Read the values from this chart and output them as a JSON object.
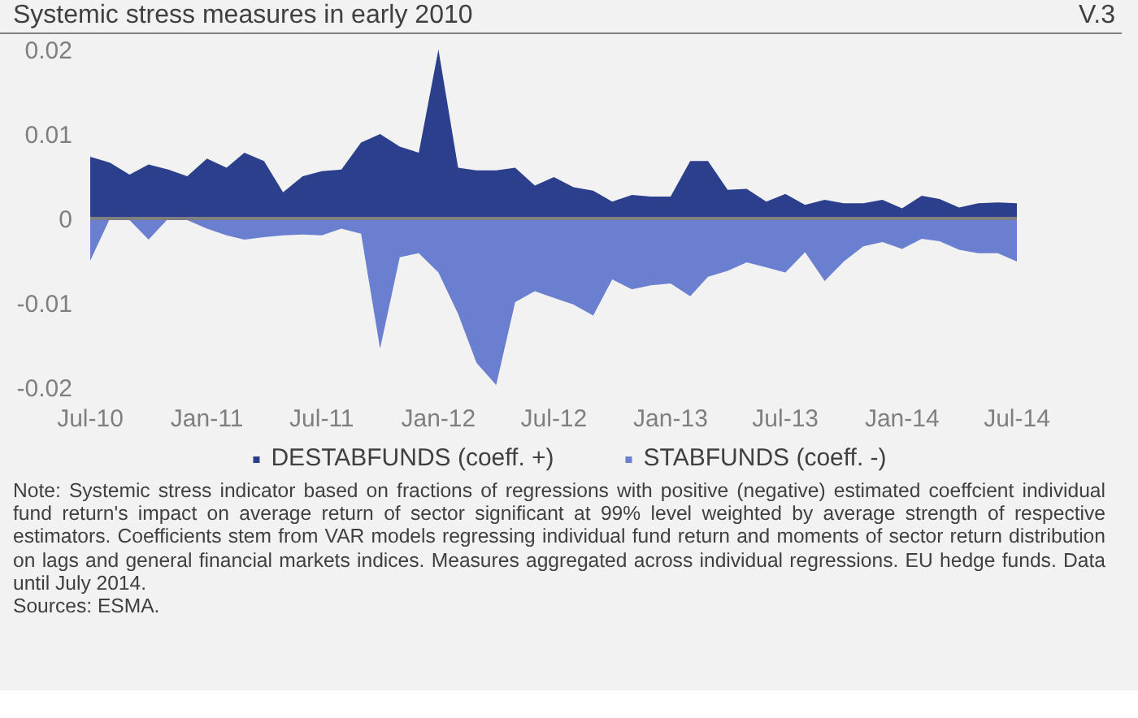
{
  "chart_data": {
    "type": "area",
    "title": "Systemic stress measures in early 2010",
    "subtitle": "V.3",
    "x": [
      "2010-07",
      "2010-08",
      "2010-09",
      "2010-10",
      "2010-11",
      "2010-12",
      "2011-01",
      "2011-02",
      "2011-03",
      "2011-04",
      "2011-05",
      "2011-06",
      "2011-07",
      "2011-08",
      "2011-09",
      "2011-10",
      "2011-11",
      "2011-12",
      "2012-01",
      "2012-02",
      "2012-03",
      "2012-04",
      "2012-05",
      "2012-06",
      "2012-07",
      "2012-08",
      "2012-09",
      "2012-10",
      "2012-11",
      "2012-12",
      "2013-01",
      "2013-02",
      "2013-03",
      "2013-04",
      "2013-05",
      "2013-06",
      "2013-07",
      "2013-08",
      "2013-09",
      "2013-10",
      "2013-11",
      "2013-12",
      "2014-01",
      "2014-02",
      "2014-03",
      "2014-04",
      "2014-05",
      "2014-06",
      "2014-07"
    ],
    "series": [
      {
        "name": "DESTABFUNDS (coeff. +)",
        "color": "#2b3f8c",
        "values": [
          0.0073,
          0.0066,
          0.0052,
          0.0064,
          0.0058,
          0.005,
          0.0071,
          0.006,
          0.0078,
          0.0068,
          0.0031,
          0.005,
          0.0056,
          0.0058,
          0.009,
          0.01,
          0.0085,
          0.0078,
          0.02,
          0.006,
          0.0057,
          0.0057,
          0.006,
          0.0039,
          0.0049,
          0.0037,
          0.0033,
          0.002,
          0.0028,
          0.0026,
          0.0026,
          0.0068,
          0.0068,
          0.0034,
          0.0035,
          0.002,
          0.0029,
          0.0016,
          0.0022,
          0.0018,
          0.0018,
          0.0022,
          0.0012,
          0.0027,
          0.0023,
          0.0013,
          0.0018,
          0.0019,
          0.0018
        ]
      },
      {
        "name": "STABFUNDS (coeff. -)",
        "color": "#6a7fd0",
        "values": [
          -0.005,
          0,
          -0.0002,
          -0.0025,
          0,
          -0.0002,
          -0.0012,
          -0.002,
          -0.0025,
          -0.0022,
          -0.002,
          -0.0019,
          -0.002,
          -0.0012,
          -0.0018,
          -0.0154,
          -0.0046,
          -0.0041,
          -0.0064,
          -0.0113,
          -0.0171,
          -0.0197,
          -0.0099,
          -0.0086,
          -0.0094,
          -0.0102,
          -0.0115,
          -0.0072,
          -0.0084,
          -0.0079,
          -0.0077,
          -0.0092,
          -0.0069,
          -0.0062,
          -0.0052,
          -0.0058,
          -0.0064,
          -0.004,
          -0.0074,
          -0.0051,
          -0.0033,
          -0.0028,
          -0.0036,
          -0.0024,
          -0.0027,
          -0.0037,
          -0.0041,
          -0.0041,
          -0.0051
        ]
      }
    ],
    "xlim": [
      "2010-07",
      "2014-07"
    ],
    "xticks": [
      {
        "value": "2010-07",
        "label": "Jul-10"
      },
      {
        "value": "2011-01",
        "label": "Jan-11"
      },
      {
        "value": "2011-07",
        "label": "Jul-11"
      },
      {
        "value": "2012-01",
        "label": "Jan-12"
      },
      {
        "value": "2012-07",
        "label": "Jul-12"
      },
      {
        "value": "2013-01",
        "label": "Jan-13"
      },
      {
        "value": "2013-07",
        "label": "Jul-13"
      },
      {
        "value": "2014-01",
        "label": "Jan-14"
      },
      {
        "value": "2014-07",
        "label": "Jul-14"
      }
    ],
    "ylim": [
      -0.02,
      0.02
    ],
    "yticks": [
      -0.02,
      -0.01,
      0,
      0.01,
      0.02
    ],
    "ref_lines": [
      {
        "axis": "y",
        "value": 0,
        "color": "#808080"
      }
    ],
    "grid": false,
    "legend": "bottom",
    "annotations": [
      "Note: Systemic stress indicator based on fractions of regressions with positive (negative) estimated coeffcient individual fund return's impact on average return of sector significant at 99% level weighted by average strength of respective estimators.  Coefficients stem from VAR models regressing individual fund return and moments of sector return distribution on lags and general financial markets indices. Measures aggregated across individual regressions. EU hedge funds. Data until July 2014.",
      "Sources: ESMA."
    ]
  }
}
